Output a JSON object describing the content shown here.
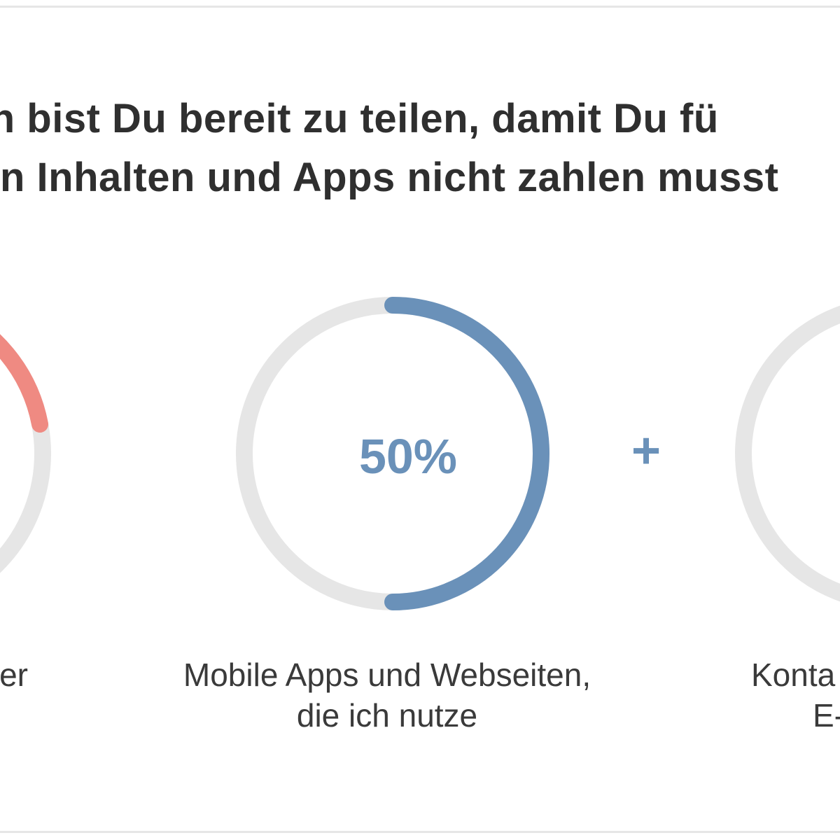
{
  "title": {
    "line1": "en bist Du bereit zu teilen, damit Du fü",
    "line2": "n Inhalten und Apps nicht zahlen musst"
  },
  "chart_data": {
    "type": "donut",
    "series": [
      {
        "label_lines": [
          "er"
        ],
        "color": "#ef8a82",
        "value_percent": null
      },
      {
        "value_label": "50%",
        "value_percent": 50,
        "label_lines": [
          "Mobile Apps und Webseiten,",
          "die ich nutze"
        ],
        "color": "#6a91b9"
      },
      {
        "label_lines": [
          "Konta",
          "E-"
        ],
        "color": null,
        "value_percent": null
      }
    ],
    "track_color": "#e6e6e6",
    "separator": "+"
  }
}
